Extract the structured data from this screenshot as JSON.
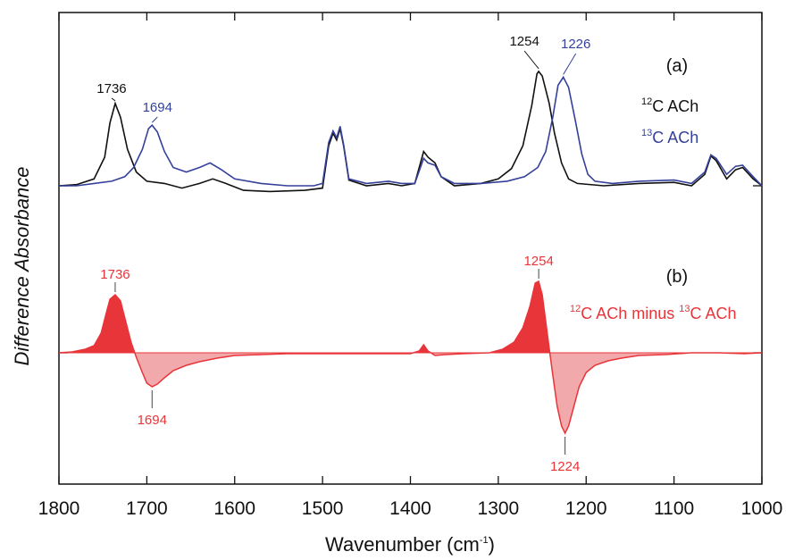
{
  "colors": {
    "c12": "#111111",
    "c13": "#34409a",
    "diff_line": "#e8353a",
    "diff_pos": "#e8353a",
    "diff_neg": "#f2a9ac"
  },
  "chart_data": {
    "type": "line",
    "xlabel": "Wavenumber (cm",
    "xlabel_sup": "-1",
    "xlabel_close": ")",
    "ylabel": "Difference Absorbance",
    "xlim": [
      1800,
      1000
    ],
    "x_ticks": [
      1800,
      1700,
      1600,
      1500,
      1400,
      1300,
      1200,
      1100,
      1000
    ],
    "panels": [
      {
        "label": "(a)",
        "series": [
          {
            "name": "12C ACh",
            "name_sup": "12",
            "name_text": "C ACh",
            "color": "#111111",
            "points": [
              [
                1800,
                0.0
              ],
              [
                1780,
                0.01
              ],
              [
                1760,
                0.06
              ],
              [
                1748,
                0.25
              ],
              [
                1742,
                0.55
              ],
              [
                1736,
                0.72
              ],
              [
                1730,
                0.6
              ],
              [
                1722,
                0.32
              ],
              [
                1712,
                0.12
              ],
              [
                1700,
                0.04
              ],
              [
                1680,
                0.02
              ],
              [
                1660,
                -0.02
              ],
              [
                1640,
                0.02
              ],
              [
                1625,
                0.06
              ],
              [
                1610,
                0.02
              ],
              [
                1590,
                -0.04
              ],
              [
                1560,
                -0.05
              ],
              [
                1520,
                -0.04
              ],
              [
                1500,
                -0.02
              ],
              [
                1493,
                0.35
              ],
              [
                1488,
                0.46
              ],
              [
                1484,
                0.4
              ],
              [
                1480,
                0.5
              ],
              [
                1476,
                0.35
              ],
              [
                1470,
                0.05
              ],
              [
                1450,
                0.0
              ],
              [
                1425,
                0.02
              ],
              [
                1410,
                0.0
              ],
              [
                1395,
                0.02
              ],
              [
                1385,
                0.3
              ],
              [
                1380,
                0.25
              ],
              [
                1372,
                0.2
              ],
              [
                1365,
                0.08
              ],
              [
                1350,
                0.0
              ],
              [
                1320,
                0.02
              ],
              [
                1300,
                0.06
              ],
              [
                1285,
                0.15
              ],
              [
                1272,
                0.35
              ],
              [
                1262,
                0.7
              ],
              [
                1256,
                0.98
              ],
              [
                1254,
                1.0
              ],
              [
                1250,
                0.96
              ],
              [
                1242,
                0.72
              ],
              [
                1236,
                0.46
              ],
              [
                1228,
                0.2
              ],
              [
                1220,
                0.06
              ],
              [
                1210,
                0.02
              ],
              [
                1180,
                0.0
              ],
              [
                1140,
                0.02
              ],
              [
                1100,
                0.03
              ],
              [
                1080,
                0.0
              ],
              [
                1065,
                0.1
              ],
              [
                1058,
                0.26
              ],
              [
                1052,
                0.22
              ],
              [
                1040,
                0.06
              ],
              [
                1030,
                0.14
              ],
              [
                1022,
                0.16
              ],
              [
                1010,
                0.06
              ],
              [
                1000,
                0.0
              ]
            ]
          },
          {
            "name": "13C ACh",
            "name_sup": "13",
            "name_text": "C ACh",
            "color": "#34409a",
            "points": [
              [
                1800,
                0.0
              ],
              [
                1780,
                0.0
              ],
              [
                1760,
                0.02
              ],
              [
                1740,
                0.04
              ],
              [
                1725,
                0.08
              ],
              [
                1715,
                0.16
              ],
              [
                1705,
                0.32
              ],
              [
                1698,
                0.5
              ],
              [
                1694,
                0.53
              ],
              [
                1688,
                0.47
              ],
              [
                1680,
                0.3
              ],
              [
                1670,
                0.16
              ],
              [
                1655,
                0.12
              ],
              [
                1640,
                0.16
              ],
              [
                1628,
                0.2
              ],
              [
                1615,
                0.14
              ],
              [
                1600,
                0.06
              ],
              [
                1570,
                0.02
              ],
              [
                1540,
                0.0
              ],
              [
                1510,
                0.0
              ],
              [
                1500,
                0.02
              ],
              [
                1493,
                0.38
              ],
              [
                1488,
                0.48
              ],
              [
                1484,
                0.42
              ],
              [
                1480,
                0.52
              ],
              [
                1476,
                0.36
              ],
              [
                1470,
                0.06
              ],
              [
                1450,
                0.02
              ],
              [
                1425,
                0.04
              ],
              [
                1410,
                0.02
              ],
              [
                1395,
                0.02
              ],
              [
                1385,
                0.24
              ],
              [
                1380,
                0.2
              ],
              [
                1372,
                0.18
              ],
              [
                1365,
                0.08
              ],
              [
                1350,
                0.02
              ],
              [
                1320,
                0.02
              ],
              [
                1290,
                0.04
              ],
              [
                1270,
                0.08
              ],
              [
                1255,
                0.16
              ],
              [
                1246,
                0.3
              ],
              [
                1238,
                0.6
              ],
              [
                1232,
                0.88
              ],
              [
                1226,
                0.95
              ],
              [
                1220,
                0.86
              ],
              [
                1212,
                0.56
              ],
              [
                1205,
                0.28
              ],
              [
                1198,
                0.1
              ],
              [
                1190,
                0.04
              ],
              [
                1170,
                0.02
              ],
              [
                1140,
                0.04
              ],
              [
                1100,
                0.05
              ],
              [
                1080,
                0.02
              ],
              [
                1065,
                0.12
              ],
              [
                1058,
                0.27
              ],
              [
                1052,
                0.24
              ],
              [
                1040,
                0.1
              ],
              [
                1030,
                0.17
              ],
              [
                1022,
                0.18
              ],
              [
                1010,
                0.08
              ],
              [
                1000,
                0.0
              ]
            ]
          }
        ],
        "annotations": [
          {
            "text": "1736",
            "x": 1736,
            "color": "#111111"
          },
          {
            "text": "1694",
            "x": 1694,
            "color": "#34409a"
          },
          {
            "text": "1254",
            "x": 1254,
            "color": "#111111"
          },
          {
            "text": "1226",
            "x": 1226,
            "color": "#34409a"
          }
        ]
      },
      {
        "label": "(b)",
        "legend_parts": [
          "12",
          "C ACh minus ",
          "13",
          "C ACh"
        ],
        "series": [
          {
            "name": "12C ACh minus 13C ACh",
            "color": "#e8353a",
            "points": [
              [
                1800,
                0.0
              ],
              [
                1785,
                0.01
              ],
              [
                1770,
                0.04
              ],
              [
                1760,
                0.08
              ],
              [
                1752,
                0.22
              ],
              [
                1746,
                0.45
              ],
              [
                1742,
                0.6
              ],
              [
                1736,
                0.65
              ],
              [
                1730,
                0.58
              ],
              [
                1724,
                0.35
              ],
              [
                1718,
                0.12
              ],
              [
                1712,
                -0.05
              ],
              [
                1706,
                -0.2
              ],
              [
                1700,
                -0.34
              ],
              [
                1694,
                -0.38
              ],
              [
                1688,
                -0.35
              ],
              [
                1680,
                -0.28
              ],
              [
                1670,
                -0.2
              ],
              [
                1655,
                -0.14
              ],
              [
                1640,
                -0.1
              ],
              [
                1620,
                -0.06
              ],
              [
                1600,
                -0.03
              ],
              [
                1570,
                -0.02
              ],
              [
                1540,
                -0.01
              ],
              [
                1500,
                -0.01
              ],
              [
                1450,
                -0.01
              ],
              [
                1400,
                -0.01
              ],
              [
                1390,
                0.02
              ],
              [
                1385,
                0.09
              ],
              [
                1380,
                0.02
              ],
              [
                1372,
                -0.03
              ],
              [
                1360,
                -0.02
              ],
              [
                1340,
                -0.01
              ],
              [
                1310,
                0.0
              ],
              [
                1295,
                0.04
              ],
              [
                1282,
                0.12
              ],
              [
                1272,
                0.28
              ],
              [
                1264,
                0.52
              ],
              [
                1258,
                0.78
              ],
              [
                1254,
                0.8
              ],
              [
                1250,
                0.65
              ],
              [
                1246,
                0.35
              ],
              [
                1242,
                0.05
              ],
              [
                1238,
                -0.25
              ],
              [
                1233,
                -0.6
              ],
              [
                1228,
                -0.82
              ],
              [
                1224,
                -0.9
              ],
              [
                1220,
                -0.82
              ],
              [
                1214,
                -0.6
              ],
              [
                1208,
                -0.38
              ],
              [
                1200,
                -0.22
              ],
              [
                1190,
                -0.14
              ],
              [
                1175,
                -0.09
              ],
              [
                1160,
                -0.06
              ],
              [
                1140,
                -0.03
              ],
              [
                1110,
                -0.02
              ],
              [
                1080,
                0.0
              ],
              [
                1050,
                0.0
              ],
              [
                1020,
                -0.01
              ],
              [
                1000,
                0.0
              ]
            ]
          }
        ],
        "annotations": [
          {
            "text": "1736",
            "x": 1736,
            "position": "above",
            "color": "#e8353a"
          },
          {
            "text": "1694",
            "x": 1694,
            "position": "below",
            "color": "#e8353a"
          },
          {
            "text": "1254",
            "x": 1254,
            "position": "above",
            "color": "#e8353a"
          },
          {
            "text": "1224",
            "x": 1224,
            "position": "below",
            "color": "#e8353a"
          }
        ]
      }
    ],
    "grid": false
  }
}
